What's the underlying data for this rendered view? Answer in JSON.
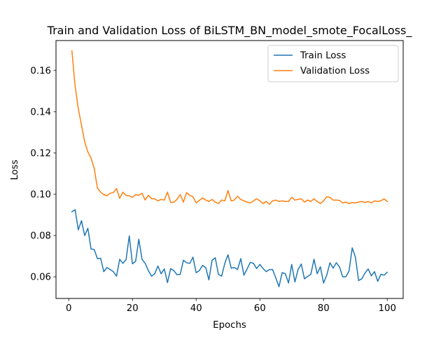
{
  "chart_data": {
    "type": "line",
    "title": "Train and Validation Loss of BiLSTM_BN_model_smote_FocalLoss_",
    "xlabel": "Epochs",
    "ylabel": "Loss",
    "xlim": [
      -4,
      105
    ],
    "ylim": [
      0.0495,
      0.1745
    ],
    "x_ticks": [
      0,
      20,
      40,
      60,
      80,
      100
    ],
    "y_ticks": [
      0.06,
      0.08,
      0.1,
      0.12,
      0.14,
      0.16
    ],
    "y_tick_labels": [
      "0.06",
      "0.08",
      "0.10",
      "0.12",
      "0.14",
      "0.16"
    ],
    "grid": false,
    "legend_position": "upper-right",
    "series": [
      {
        "name": "Train Loss",
        "color": "#1f77b4",
        "x": [
          1,
          2,
          3,
          4,
          5,
          6,
          7,
          8,
          9,
          10,
          11,
          12,
          13,
          14,
          15,
          16,
          17,
          18,
          19,
          20,
          21,
          22,
          23,
          24,
          25,
          26,
          27,
          28,
          29,
          30,
          31,
          32,
          33,
          34,
          35,
          36,
          37,
          38,
          39,
          40,
          41,
          42,
          43,
          44,
          45,
          46,
          47,
          48,
          49,
          50,
          51,
          52,
          53,
          54,
          55,
          56,
          57,
          58,
          59,
          60,
          61,
          62,
          63,
          64,
          65,
          66,
          67,
          68,
          69,
          70,
          71,
          72,
          73,
          74,
          75,
          76,
          77,
          78,
          79,
          80,
          81,
          82,
          83,
          84,
          85,
          86,
          87,
          88,
          89,
          90,
          91,
          92,
          93,
          94,
          95,
          96,
          97,
          98,
          99,
          100
        ],
        "values": [
          0.0915,
          0.0925,
          0.0828,
          0.0872,
          0.08,
          0.0835,
          0.0735,
          0.0732,
          0.0688,
          0.069,
          0.0625,
          0.0645,
          0.0635,
          0.0625,
          0.0603,
          0.0685,
          0.0665,
          0.0683,
          0.0798,
          0.0663,
          0.0675,
          0.0782,
          0.0685,
          0.0665,
          0.063,
          0.0603,
          0.0615,
          0.0652,
          0.0615,
          0.0638,
          0.0572,
          0.064,
          0.063,
          0.061,
          0.0612,
          0.068,
          0.0668,
          0.0665,
          0.0695,
          0.062,
          0.063,
          0.0655,
          0.0645,
          0.0585,
          0.068,
          0.0692,
          0.0612,
          0.0603,
          0.0665,
          0.0707,
          0.0642,
          0.0645,
          0.0635,
          0.0688,
          0.0608,
          0.0638,
          0.067,
          0.0665,
          0.064,
          0.066,
          0.064,
          0.0625,
          0.0635,
          0.0635,
          0.0595,
          0.0552,
          0.062,
          0.0615,
          0.057,
          0.066,
          0.0575,
          0.0635,
          0.0662,
          0.059,
          0.0602,
          0.0612,
          0.0685,
          0.0615,
          0.0648,
          0.057,
          0.0608,
          0.0668,
          0.0642,
          0.0668,
          0.0648,
          0.06,
          0.06,
          0.0628,
          0.074,
          0.0695,
          0.0582,
          0.059,
          0.0618,
          0.0638,
          0.0605,
          0.0625,
          0.0578,
          0.0612,
          0.0608,
          0.0622
        ]
      },
      {
        "name": "Validation Loss",
        "color": "#ff7f0e",
        "x": [
          1,
          2,
          3,
          4,
          5,
          6,
          7,
          8,
          9,
          10,
          11,
          12,
          13,
          14,
          15,
          16,
          17,
          18,
          19,
          20,
          21,
          22,
          23,
          24,
          25,
          26,
          27,
          28,
          29,
          30,
          31,
          32,
          33,
          34,
          35,
          36,
          37,
          38,
          39,
          40,
          41,
          42,
          43,
          44,
          45,
          46,
          47,
          48,
          49,
          50,
          51,
          52,
          53,
          54,
          55,
          56,
          57,
          58,
          59,
          60,
          61,
          62,
          63,
          64,
          65,
          66,
          67,
          68,
          69,
          70,
          71,
          72,
          73,
          74,
          75,
          76,
          77,
          78,
          79,
          80,
          81,
          82,
          83,
          84,
          85,
          86,
          87,
          88,
          89,
          90,
          91,
          92,
          93,
          94,
          95,
          96,
          97,
          98,
          99,
          100
        ],
        "values": [
          0.1695,
          0.1525,
          0.1415,
          0.1335,
          0.1255,
          0.1205,
          0.1175,
          0.1125,
          0.103,
          0.101,
          0.0998,
          0.0993,
          0.1005,
          0.1008,
          0.1028,
          0.098,
          0.101,
          0.0995,
          0.0992,
          0.0985,
          0.0998,
          0.0995,
          0.1005,
          0.0972,
          0.0995,
          0.0978,
          0.0978,
          0.0968,
          0.0975,
          0.0972,
          0.101,
          0.096,
          0.0962,
          0.0975,
          0.0998,
          0.0962,
          0.1008,
          0.0995,
          0.0988,
          0.0958,
          0.097,
          0.0982,
          0.0972,
          0.0965,
          0.0975,
          0.0962,
          0.0955,
          0.0972,
          0.0968,
          0.1018,
          0.0968,
          0.0972,
          0.099,
          0.0975,
          0.0968,
          0.0962,
          0.0958,
          0.0968,
          0.0978,
          0.0968,
          0.0955,
          0.0965,
          0.0952,
          0.0968,
          0.0972,
          0.0965,
          0.0968,
          0.0965,
          0.0965,
          0.0985,
          0.0972,
          0.0975,
          0.0978,
          0.0962,
          0.0972,
          0.0965,
          0.0978,
          0.0965,
          0.0955,
          0.0968,
          0.0988,
          0.0985,
          0.0972,
          0.0972,
          0.097,
          0.0958,
          0.0962,
          0.0955,
          0.096,
          0.0958,
          0.0962,
          0.0965,
          0.096,
          0.0965,
          0.0958,
          0.0968,
          0.0965,
          0.0968,
          0.0978,
          0.0965
        ]
      }
    ]
  }
}
